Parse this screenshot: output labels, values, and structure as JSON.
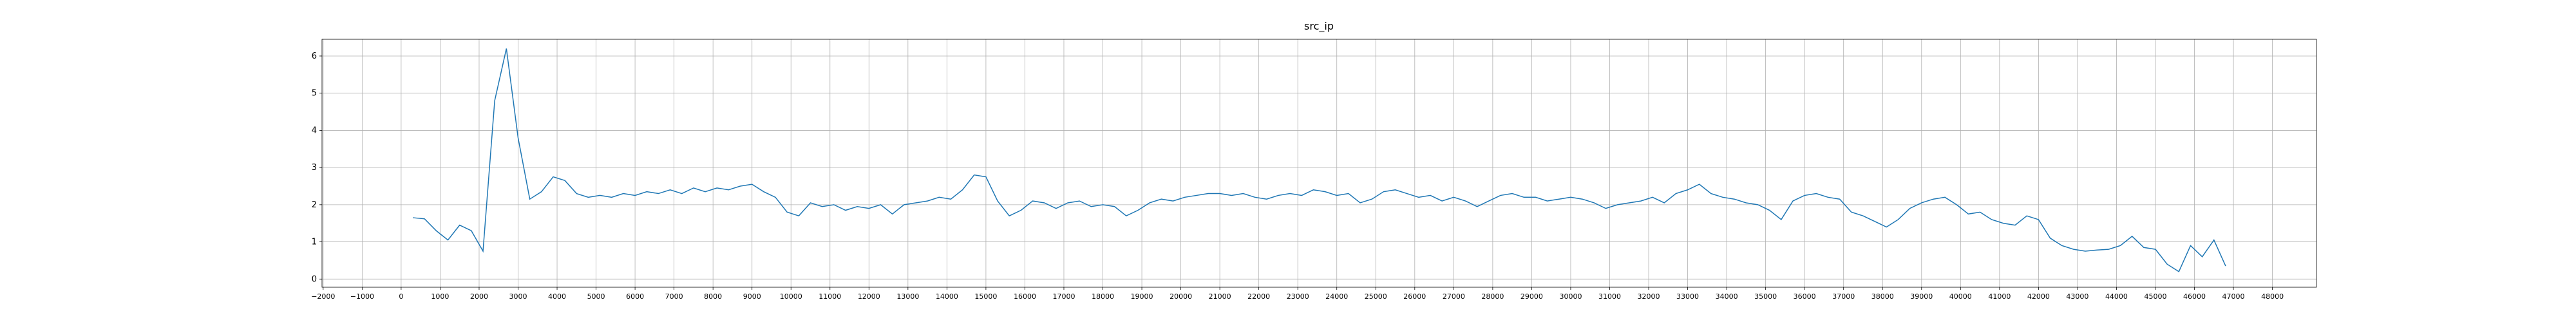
{
  "chart_data": {
    "type": "line",
    "title": "src_ip",
    "grid": true,
    "xlim": [
      -2030,
      49130
    ],
    "ylim": [
      -0.22,
      6.45
    ],
    "xticks": [
      {
        "value": -2000,
        "label": "−2000"
      },
      {
        "value": -1000,
        "label": "−1000"
      },
      0,
      1000,
      2000,
      3000,
      4000,
      5000,
      6000,
      7000,
      8000,
      9000,
      10000,
      11000,
      12000,
      13000,
      14000,
      15000,
      16000,
      17000,
      18000,
      19000,
      20000,
      21000,
      22000,
      23000,
      24000,
      25000,
      26000,
      27000,
      28000,
      29000,
      30000,
      31000,
      32000,
      33000,
      34000,
      35000,
      36000,
      37000,
      38000,
      39000,
      40000,
      41000,
      42000,
      43000,
      44000,
      45000,
      46000,
      47000,
      48000
    ],
    "yticks": [
      0,
      1,
      2,
      3,
      4,
      5,
      6
    ],
    "x": [
      300,
      600,
      900,
      1200,
      1500,
      1800,
      2100,
      2400,
      2700,
      3000,
      3300,
      3600,
      3900,
      4200,
      4500,
      4800,
      5100,
      5400,
      5700,
      6000,
      6300,
      6600,
      6900,
      7200,
      7500,
      7800,
      8100,
      8400,
      8700,
      9000,
      9300,
      9600,
      9900,
      10200,
      10500,
      10800,
      11100,
      11400,
      11700,
      12000,
      12300,
      12600,
      12900,
      13200,
      13500,
      13800,
      14100,
      14400,
      14700,
      15000,
      15300,
      15600,
      15900,
      16200,
      16500,
      16800,
      17100,
      17400,
      17700,
      18000,
      18300,
      18600,
      18900,
      19200,
      19500,
      19800,
      20100,
      20400,
      20700,
      21000,
      21300,
      21600,
      21900,
      22200,
      22500,
      22800,
      23100,
      23400,
      23700,
      24000,
      24300,
      24600,
      24900,
      25200,
      25500,
      25800,
      26100,
      26400,
      26700,
      27000,
      27300,
      27600,
      27900,
      28200,
      28500,
      28800,
      29100,
      29400,
      29700,
      30000,
      30300,
      30600,
      30900,
      31200,
      31500,
      31800,
      32100,
      32400,
      32700,
      33000,
      33300,
      33600,
      33900,
      34200,
      34500,
      34800,
      35100,
      35400,
      35700,
      36000,
      36300,
      36600,
      36900,
      37200,
      37500,
      37800,
      38100,
      38400,
      38700,
      39000,
      39300,
      39600,
      39900,
      40200,
      40500,
      40800,
      41100,
      41400,
      41700,
      42000,
      42300,
      42600,
      42900,
      43200,
      43500,
      43800,
      44100,
      44400,
      44700,
      45000,
      45300,
      45600,
      45900,
      46200,
      46500,
      46800
    ],
    "series": [
      {
        "color": "#1f77b4",
        "values": [
          1.65,
          1.62,
          1.3,
          1.05,
          1.45,
          1.3,
          0.75,
          4.8,
          6.2,
          3.8,
          2.15,
          2.35,
          2.75,
          2.65,
          2.3,
          2.2,
          2.25,
          2.2,
          2.3,
          2.25,
          2.35,
          2.3,
          2.4,
          2.3,
          2.45,
          2.35,
          2.45,
          2.4,
          2.5,
          2.55,
          2.35,
          2.2,
          1.8,
          1.7,
          2.05,
          1.95,
          2.0,
          1.85,
          1.95,
          1.9,
          2.0,
          1.75,
          2.0,
          2.05,
          2.1,
          2.2,
          2.15,
          2.4,
          2.8,
          2.75,
          2.1,
          1.7,
          1.85,
          2.1,
          2.05,
          1.9,
          2.05,
          2.1,
          1.95,
          2.0,
          1.95,
          1.7,
          1.85,
          2.05,
          2.15,
          2.1,
          2.2,
          2.25,
          2.3,
          2.3,
          2.25,
          2.3,
          2.2,
          2.15,
          2.25,
          2.3,
          2.25,
          2.4,
          2.35,
          2.25,
          2.3,
          2.05,
          2.15,
          2.35,
          2.4,
          2.3,
          2.2,
          2.25,
          2.1,
          2.2,
          2.1,
          1.95,
          2.1,
          2.25,
          2.3,
          2.2,
          2.2,
          2.1,
          2.15,
          2.2,
          2.15,
          2.05,
          1.9,
          2.0,
          2.05,
          2.1,
          2.2,
          2.05,
          2.3,
          2.4,
          2.55,
          2.3,
          2.2,
          2.15,
          2.05,
          2.0,
          1.85,
          1.6,
          2.1,
          2.25,
          2.3,
          2.2,
          2.15,
          1.8,
          1.7,
          1.55,
          1.4,
          1.6,
          1.9,
          2.05,
          2.15,
          2.2,
          2.0,
          1.75,
          1.8,
          1.6,
          1.5,
          1.45,
          1.7,
          1.6,
          1.1,
          0.9,
          0.8,
          0.75,
          0.78,
          0.8,
          0.9,
          1.15,
          0.85,
          0.8,
          0.4,
          0.2,
          0.9,
          0.6,
          1.05,
          0.35
        ]
      }
    ]
  }
}
